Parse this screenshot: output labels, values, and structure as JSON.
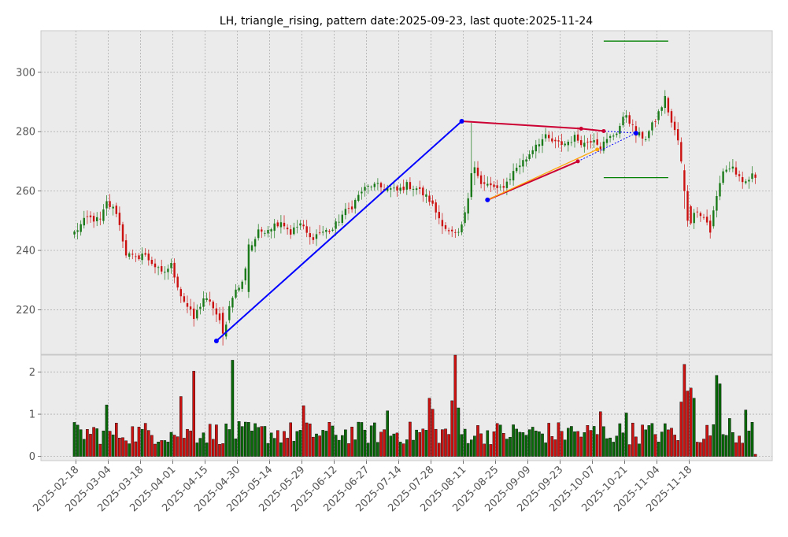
{
  "chart_data": {
    "type": "candlestick",
    "title": "LH, triangle_rising, pattern date:2025-09-23, last quote:2025-11-24",
    "colors": {
      "up": "#1a7a1a",
      "down": "#cc1111",
      "volume_up": "#0a6a0a",
      "volume_down": "#cc1111",
      "trend_blue": "#0000ff",
      "trend_red": "#cc0033",
      "trend_orange": "#ffa500",
      "target_green": "#008000",
      "background": "#ebebeb",
      "grid": "#b0b0b0"
    },
    "price_axis": {
      "ylim": [
        205,
        314
      ],
      "ticks": [
        220,
        240,
        260,
        280,
        300
      ]
    },
    "volume_axis": {
      "ylim": [
        -0.1,
        2.4
      ],
      "ticks": [
        0,
        1,
        2
      ]
    },
    "date_ticks": [
      "2025-02-18",
      "2025-03-04",
      "2025-03-18",
      "2025-04-01",
      "2025-04-15",
      "2025-04-30",
      "2025-05-14",
      "2025-05-29",
      "2025-06-12",
      "2025-06-27",
      "2025-07-14",
      "2025-07-28",
      "2025-08-11",
      "2025-08-25",
      "2025-09-09",
      "2025-09-23",
      "2025-10-07",
      "2025-10-21",
      "2025-11-04",
      "2025-11-18"
    ],
    "price_anchors": [
      [
        0,
        246
      ],
      [
        4,
        251
      ],
      [
        8,
        250
      ],
      [
        10,
        256
      ],
      [
        13,
        253
      ],
      [
        16,
        239
      ],
      [
        19,
        237
      ],
      [
        21,
        239
      ],
      [
        24,
        236
      ],
      [
        27,
        232
      ],
      [
        30,
        235
      ],
      [
        33,
        225
      ],
      [
        37,
        217
      ],
      [
        40,
        224
      ],
      [
        43,
        221
      ],
      [
        46,
        213
      ],
      [
        49,
        225
      ],
      [
        52,
        229
      ],
      [
        54,
        240
      ],
      [
        57,
        246
      ],
      [
        61,
        248
      ],
      [
        64,
        250
      ],
      [
        67,
        246
      ],
      [
        70,
        249
      ],
      [
        73,
        244
      ],
      [
        76,
        246
      ],
      [
        80,
        247
      ],
      [
        83,
        252
      ],
      [
        86,
        255
      ],
      [
        89,
        260
      ],
      [
        92,
        262
      ],
      [
        96,
        261
      ],
      [
        100,
        260
      ],
      [
        103,
        262
      ],
      [
        106,
        261
      ],
      [
        110,
        257
      ],
      [
        113,
        251
      ],
      [
        116,
        246
      ],
      [
        119,
        245
      ],
      [
        121,
        252
      ],
      [
        123,
        264
      ],
      [
        124,
        268
      ],
      [
        126,
        262
      ],
      [
        129,
        262
      ],
      [
        131,
        260
      ],
      [
        134,
        263
      ],
      [
        137,
        268
      ],
      [
        140,
        271
      ],
      [
        143,
        276
      ],
      [
        146,
        278
      ],
      [
        149,
        276
      ],
      [
        152,
        276
      ],
      [
        155,
        278
      ],
      [
        158,
        276
      ],
      [
        161,
        278
      ],
      [
        163,
        275
      ],
      [
        165,
        277
      ],
      [
        168,
        280
      ],
      [
        171,
        286
      ],
      [
        174,
        279
      ],
      [
        177,
        278
      ],
      [
        180,
        284
      ],
      [
        183,
        291
      ],
      [
        185,
        283
      ],
      [
        187,
        277
      ],
      [
        189,
        262
      ],
      [
        191,
        250
      ],
      [
        193,
        254
      ],
      [
        195,
        251
      ],
      [
        197,
        248
      ],
      [
        199,
        258
      ],
      [
        201,
        267
      ],
      [
        204,
        268
      ],
      [
        207,
        262
      ],
      [
        210,
        265
      ],
      [
        211,
        265
      ]
    ],
    "patches": [
      {
        "i": 46,
        "o": 219,
        "c": 212,
        "h": 221,
        "l": 208
      },
      {
        "i": 47,
        "o": 211,
        "c": 215,
        "h": 216,
        "l": 210
      },
      {
        "i": 54,
        "o": 226,
        "c": 242,
        "h": 244,
        "l": 224
      },
      {
        "i": 123,
        "o": 258,
        "c": 266,
        "h": 283,
        "l": 257
      },
      {
        "i": 124,
        "o": 266,
        "c": 268,
        "h": 270,
        "l": 262
      },
      {
        "i": 183,
        "o": 288,
        "c": 292,
        "h": 294,
        "l": 286
      },
      {
        "i": 189,
        "o": 267,
        "c": 260,
        "h": 269,
        "l": 254
      },
      {
        "i": 190,
        "o": 260,
        "c": 250,
        "h": 262,
        "l": 248
      },
      {
        "i": 197,
        "o": 250,
        "c": 246,
        "h": 252,
        "l": 244
      }
    ],
    "volume_peaks": [
      [
        10,
        1.22
      ],
      [
        33,
        1.42
      ],
      [
        37,
        2.02
      ],
      [
        49,
        2.28
      ],
      [
        71,
        1.2
      ],
      [
        97,
        1.08
      ],
      [
        110,
        1.38
      ],
      [
        111,
        1.12
      ],
      [
        117,
        1.32
      ],
      [
        118,
        2.4
      ],
      [
        119,
        1.15
      ],
      [
        153,
        0.67
      ],
      [
        163,
        1.06
      ],
      [
        171,
        1.03
      ],
      [
        184,
        0.63
      ],
      [
        188,
        1.29
      ],
      [
        189,
        2.18
      ],
      [
        190,
        1.55
      ],
      [
        191,
        1.62
      ],
      [
        192,
        1.38
      ],
      [
        199,
        1.92
      ],
      [
        200,
        1.72
      ],
      [
        203,
        0.9
      ],
      [
        208,
        1.1
      ]
    ],
    "overlays": {
      "blue_line": [
        [
          44,
          209.5
        ],
        [
          120,
          283.5
        ]
      ],
      "red_upper": [
        [
          120,
          283.5
        ],
        [
          157,
          281
        ],
        [
          164,
          280.2
        ]
      ],
      "red_lower": [
        [
          128,
          257
        ],
        [
          156,
          270
        ]
      ],
      "orange_line": [
        [
          128,
          257
        ],
        [
          162,
          274
        ]
      ],
      "blue_dotted": [
        [
          156,
          270
        ],
        [
          174,
          279.5
        ],
        [
          164,
          280.2
        ]
      ],
      "target_upper": [
        [
          164,
          310.5
        ],
        [
          184,
          310.5
        ]
      ],
      "target_lower": [
        [
          164,
          264.5
        ],
        [
          184,
          264.5
        ]
      ]
    }
  }
}
